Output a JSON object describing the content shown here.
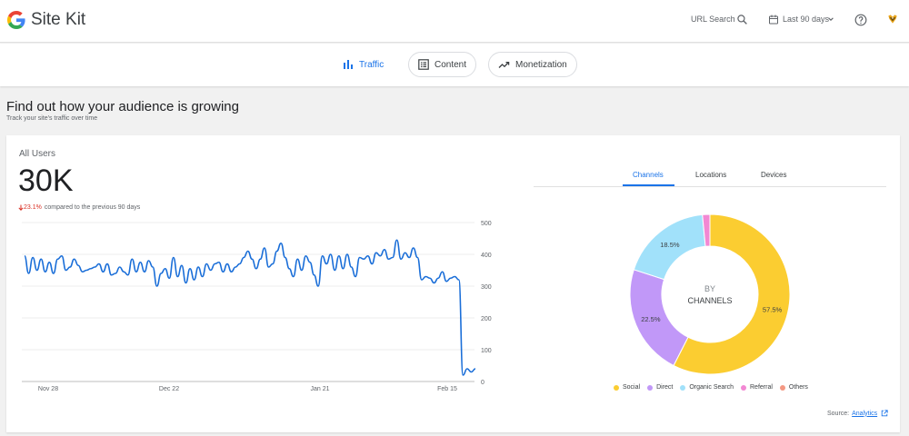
{
  "app": {
    "name": "Site Kit"
  },
  "header": {
    "url_search_label": "URL Search",
    "date_range_label": "Last 90 days"
  },
  "nav": {
    "tabs": [
      {
        "label": "Traffic",
        "icon": "bar-chart-icon",
        "active": true
      },
      {
        "label": "Content",
        "icon": "content-list-icon",
        "active": false
      },
      {
        "label": "Monetization",
        "icon": "trending-up-icon",
        "active": false
      }
    ]
  },
  "section": {
    "title": "Find out how your audience is growing",
    "subtitle": "Track your site's traffic over time"
  },
  "metric": {
    "label": "All Users",
    "value": "30K",
    "change_pct": "23.1%",
    "change_text": "compared to the previous 90 days",
    "direction": "down"
  },
  "channel_tabs": [
    {
      "label": "Channels",
      "active": true
    },
    {
      "label": "Locations",
      "active": false
    },
    {
      "label": "Devices",
      "active": false
    }
  ],
  "source": {
    "label": "Source:",
    "link": "Analytics"
  },
  "colors": {
    "accent": "#1a73e8",
    "negative": "#d93025",
    "line": "#1a6ed8",
    "social": "#fbcd31",
    "direct": "#c198f8",
    "organic": "#a1e1fa",
    "referral": "#f288d3",
    "others": "#f49883"
  },
  "chart_data": [
    {
      "type": "line",
      "ylim": [
        0,
        500
      ],
      "y_ticks": [
        0,
        100,
        200,
        300,
        400,
        500
      ],
      "x_tick_labels": [
        "Nov 28",
        "Dec 22",
        "Jan 21",
        "Feb 15"
      ],
      "series": [
        {
          "values": [
            395,
            340,
            390,
            350,
            385,
            345,
            375,
            340,
            385,
            395,
            350,
            360,
            385,
            365,
            345,
            350,
            355,
            360,
            370,
            345,
            370,
            335,
            340,
            360,
            345,
            335,
            385,
            345,
            375,
            345,
            380,
            360,
            300,
            340,
            355,
            325,
            390,
            330,
            365,
            310,
            355,
            320,
            360,
            330,
            370,
            350,
            370,
            375,
            345,
            370,
            345,
            360,
            370,
            390,
            410,
            385,
            355,
            385,
            420,
            360,
            370,
            410,
            435,
            390,
            355,
            330,
            385,
            350,
            395,
            375,
            335,
            300,
            395,
            370,
            400,
            350,
            395,
            355,
            400,
            360,
            330,
            390,
            385,
            395,
            370,
            405,
            395,
            415,
            385,
            390,
            445,
            385,
            405,
            390,
            420,
            390,
            320,
            330,
            325,
            310,
            325,
            345,
            315,
            325,
            330,
            320,
            20,
            40,
            30,
            40
          ]
        }
      ]
    },
    {
      "type": "pie",
      "title": "BY CHANNELS",
      "categories": [
        "Social",
        "Direct",
        "Organic Search",
        "Referral",
        "Others"
      ],
      "values": [
        57.5,
        22.5,
        18.5,
        1.5,
        0
      ],
      "value_labels": [
        "57.5%",
        "22.5%",
        "18.5%",
        "",
        ""
      ]
    }
  ]
}
